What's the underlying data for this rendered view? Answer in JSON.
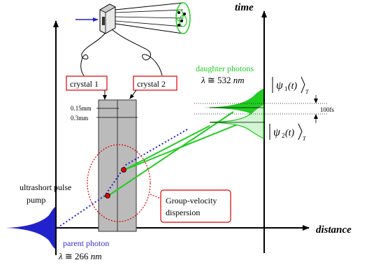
{
  "axes": {
    "time": "time",
    "distance": "distance"
  },
  "crystals": {
    "c1": "crystal 1",
    "c2": "crystal 2",
    "thick1": "0.15mm",
    "thick2": "0.3mm"
  },
  "pulse": {
    "line1": "ultrashort pulse",
    "line2": "pump"
  },
  "parent": {
    "label": "parent photon",
    "lambda_sym": "λ",
    "approx": " ≅ 266 ",
    "unit": "nm"
  },
  "daughter": {
    "label": "daughter photons",
    "lambda_sym": "λ",
    "approx": " ≅ 532 ",
    "unit": "nm"
  },
  "gvd": {
    "line1": "Group-velocity",
    "line2": "dispersion"
  },
  "states": {
    "psi1_main": "ψ",
    "psi1_sub": "1",
    "psi1_t": "(t)",
    "psi1_T": "T",
    "psi2_main": "ψ",
    "psi2_sub": "2",
    "psi2_t": "(t)",
    "psi2_T": "T"
  },
  "delay": "100fs",
  "colors": {
    "green": "#22cc22",
    "blue": "#2222cc",
    "red": "#dd0000",
    "crystal": "#bbbbbb"
  }
}
